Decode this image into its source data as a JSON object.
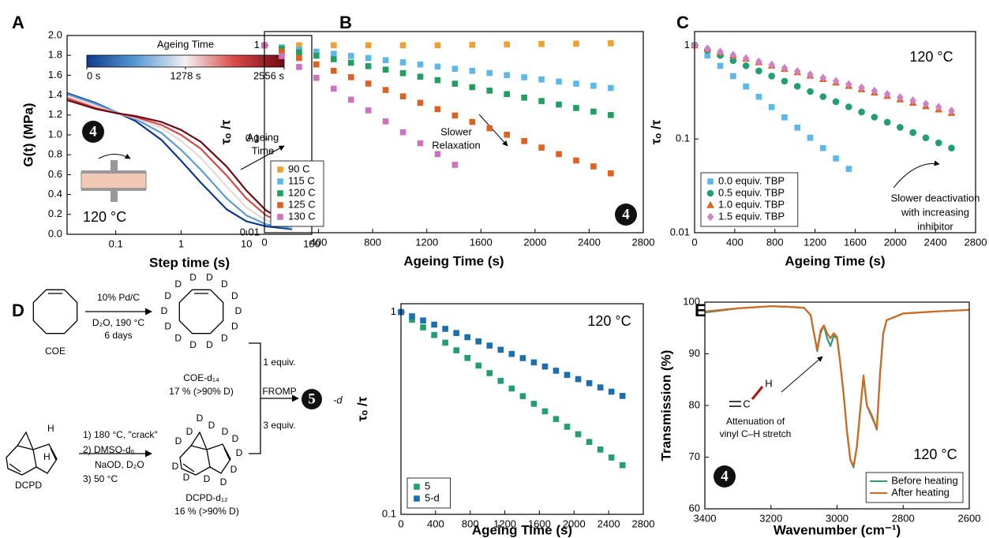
{
  "chart_data": [
    {
      "type": "line",
      "label": "A",
      "xlabel": "Step time (s)",
      "ylabel": "G(t) (MPa)",
      "xlog": true,
      "xlim": [
        0.018,
        100
      ],
      "xticks": [
        0.1,
        1,
        10,
        100
      ],
      "ylim": [
        0,
        2
      ],
      "yticks": [
        {
          "value": 0,
          "label": "0.0"
        },
        0.2,
        0.4,
        0.6,
        0.8,
        {
          "value": 1,
          "label": "1.0"
        },
        1.2,
        1.4,
        1.6,
        1.8,
        {
          "value": 2,
          "label": "2.0"
        }
      ],
      "x": [
        0.018,
        0.05,
        0.1,
        0.2,
        0.5,
        1,
        2,
        5,
        10,
        20,
        50
      ],
      "series": [
        {
          "color": "#0d3a8c",
          "values": [
            1.42,
            1.32,
            1.23,
            1.14,
            0.95,
            0.74,
            0.52,
            0.25,
            0.13,
            0.08,
            0.05
          ]
        },
        {
          "color": "#5a9bd5",
          "values": [
            1.41,
            1.31,
            1.23,
            1.16,
            1.02,
            0.85,
            0.65,
            0.36,
            0.19,
            0.1,
            0.06
          ]
        },
        {
          "color": "#e6d8d8",
          "values": [
            1.39,
            1.29,
            1.22,
            1.17,
            1.07,
            0.94,
            0.77,
            0.48,
            0.27,
            0.14,
            0.07
          ]
        },
        {
          "color": "#d94848",
          "values": [
            1.37,
            1.27,
            1.22,
            1.18,
            1.1,
            1.0,
            0.86,
            0.59,
            0.36,
            0.19,
            0.08
          ]
        },
        {
          "color": "#6e0a12",
          "values": [
            1.35,
            1.26,
            1.22,
            1.19,
            1.13,
            1.05,
            0.93,
            0.68,
            0.44,
            0.24,
            0.09
          ]
        }
      ],
      "colorbar": {
        "title": "Ageing Time",
        "lim": [
          0,
          2556
        ],
        "colors": [
          "#0d3a8c",
          "#5a9bd5",
          "#f2f2f2",
          "#d94848",
          "#6e0a12"
        ],
        "ticks": [
          {
            "value": 0,
            "label": "0 s"
          },
          {
            "value": 1278,
            "label": "1278 s"
          },
          {
            "value": 2556,
            "label": "2556 s"
          }
        ]
      },
      "annotation": [
        "Ageing",
        "Time"
      ],
      "note": "120 °C",
      "badge": "4"
    },
    {
      "type": "scatter",
      "label": "B",
      "xlabel": "Ageing Time (s)",
      "ylabel": "τₒ /τ",
      "xlim": [
        0,
        2800
      ],
      "xticks": [
        0,
        400,
        800,
        1200,
        1600,
        2000,
        2400,
        2800
      ],
      "ylog": true,
      "ylim": [
        0.01,
        1.4
      ],
      "yticks": [
        0.01,
        0.1,
        1
      ],
      "legend": "lower left",
      "series": [
        {
          "name": "90 C",
          "color": "#f0a030",
          "marker": "square",
          "x": [
            0,
            256,
            512,
            768,
            1024,
            1280,
            1536,
            1792,
            2048,
            2304,
            2560
          ],
          "values": [
            1,
            1,
            1,
            1,
            1,
            1,
            1.01,
            1.02,
            1.03,
            1.04,
            1.05
          ]
        },
        {
          "name": "115 C",
          "color": "#5bb8ea",
          "marker": "square",
          "x": [
            0,
            128,
            256,
            384,
            512,
            640,
            768,
            896,
            1024,
            1152,
            1280,
            1408,
            1536,
            1664,
            1792,
            1920,
            2048,
            2176,
            2304,
            2432,
            2560
          ],
          "values": [
            1,
            0.95,
            0.9,
            0.854,
            0.811,
            0.769,
            0.73,
            0.692,
            0.657,
            0.624,
            0.592,
            0.561,
            0.533,
            0.505,
            0.48,
            0.455,
            0.432,
            0.41,
            0.389,
            0.369,
            0.35
          ]
        },
        {
          "name": "120 C",
          "color": "#20a060",
          "marker": "square",
          "x": [
            0,
            128,
            256,
            384,
            512,
            640,
            768,
            896,
            1024,
            1152,
            1280,
            1408,
            1536,
            1664,
            1792,
            1920,
            2048,
            2176,
            2304,
            2432,
            2560
          ],
          "values": [
            1,
            0.918,
            0.843,
            0.773,
            0.71,
            0.651,
            0.598,
            0.549,
            0.504,
            0.462,
            0.424,
            0.389,
            0.357,
            0.328,
            0.301,
            0.276,
            0.254,
            0.233,
            0.214,
            0.196,
            0.18
          ]
        },
        {
          "name": "125 C",
          "color": "#e06020",
          "marker": "square",
          "x": [
            0,
            128,
            256,
            384,
            512,
            640,
            768,
            896,
            1024,
            1152,
            1280,
            1408,
            1536,
            1664,
            1792,
            1920,
            2048,
            2176,
            2304,
            2432,
            2560
          ],
          "values": [
            1,
            0.855,
            0.73,
            0.624,
            0.534,
            0.456,
            0.39,
            0.333,
            0.285,
            0.243,
            0.208,
            0.178,
            0.152,
            0.13,
            0.111,
            0.095,
            0.081,
            0.069,
            0.059,
            0.051,
            0.043
          ]
        },
        {
          "name": "130 C",
          "color": "#d070c0",
          "marker": "square",
          "x": [
            0,
            128,
            256,
            384,
            512,
            640,
            768,
            896,
            1024,
            1152,
            1280,
            1408
          ],
          "values": [
            1,
            0.766,
            0.586,
            0.449,
            0.344,
            0.263,
            0.202,
            0.154,
            0.118,
            0.09,
            0.069,
            0.053
          ]
        }
      ],
      "annotation": [
        "Slower",
        "Relaxation"
      ],
      "badge": "4"
    },
    {
      "type": "scatter",
      "label": "C",
      "xlabel": "Ageing Time (s)",
      "ylabel": "τₒ /τ",
      "xlim": [
        0,
        2800
      ],
      "xticks": [
        0,
        400,
        800,
        1200,
        1600,
        2000,
        2400,
        2800
      ],
      "ylog": true,
      "ylim": [
        0.01,
        1.4
      ],
      "yticks": [
        0.01,
        0.1,
        1
      ],
      "legend": "lower left",
      "series": [
        {
          "name": "0.0 equiv. TBP",
          "color": "#5bb8ea",
          "marker": "square",
          "x": [
            0,
            128,
            256,
            384,
            512,
            640,
            768,
            896,
            1024,
            1152,
            1280,
            1408,
            1536
          ],
          "values": [
            1,
            0.776,
            0.603,
            0.468,
            0.363,
            0.282,
            0.219,
            0.17,
            0.132,
            0.103,
            0.08,
            0.062,
            0.048
          ]
        },
        {
          "name": "0.5 equiv. TBP",
          "color": "#20a070",
          "marker": "circle",
          "x": [
            0,
            128,
            256,
            384,
            512,
            640,
            768,
            896,
            1024,
            1152,
            1280,
            1408,
            1536,
            1664,
            1792,
            1920,
            2048,
            2176,
            2304,
            2432,
            2560
          ],
          "values": [
            1,
            0.881,
            0.777,
            0.685,
            0.604,
            0.532,
            0.469,
            0.414,
            0.365,
            0.321,
            0.283,
            0.25,
            0.22,
            0.194,
            0.171,
            0.151,
            0.133,
            0.117,
            0.103,
            0.091,
            0.08
          ]
        },
        {
          "name": "1.0 equiv. TBP",
          "color": "#e06020",
          "marker": "triangle",
          "x": [
            0,
            128,
            256,
            384,
            512,
            640,
            768,
            896,
            1024,
            1152,
            1280,
            1408,
            1536,
            1664,
            1792,
            1920,
            2048,
            2176,
            2304,
            2432,
            2560
          ],
          "values": [
            1,
            0.92,
            0.847,
            0.78,
            0.718,
            0.66,
            0.608,
            0.559,
            0.515,
            0.474,
            0.436,
            0.401,
            0.369,
            0.34,
            0.313,
            0.288,
            0.265,
            0.244,
            0.224,
            0.207,
            0.19
          ]
        },
        {
          "name": "1.5 equiv. TBP",
          "color": "#d080c8",
          "marker": "diamond",
          "x": [
            0,
            128,
            256,
            384,
            512,
            640,
            768,
            896,
            1024,
            1152,
            1280,
            1408,
            1536,
            1664,
            1792,
            1920,
            2048,
            2176,
            2304,
            2432,
            2560
          ],
          "values": [
            1,
            0.923,
            0.852,
            0.787,
            0.726,
            0.67,
            0.619,
            0.571,
            0.527,
            0.487,
            0.449,
            0.415,
            0.383,
            0.353,
            0.326,
            0.301,
            0.278,
            0.257,
            0.237,
            0.219,
            0.2
          ]
        }
      ],
      "note": "120 °C",
      "annotation": [
        "Slower deactivation",
        "with increasing",
        "inhibitor"
      ]
    },
    {
      "type": "scatter",
      "xlabel": "Ageing Time (s)",
      "ylabel": "τₒ /τ",
      "xlim": [
        0,
        2800
      ],
      "xticks": [
        0,
        400,
        800,
        1200,
        1600,
        2000,
        2400,
        2800
      ],
      "ylog": true,
      "ylim": [
        0.1,
        1.1
      ],
      "yticks": [
        0.1,
        1
      ],
      "legend": "lower left",
      "series": [
        {
          "name": "5",
          "color": "#20a070",
          "marker": "square",
          "x": [
            0,
            128,
            256,
            384,
            512,
            640,
            768,
            896,
            1024,
            1152,
            1280,
            1408,
            1536,
            1664,
            1792,
            1920,
            2048,
            2176,
            2304,
            2432,
            2560
          ],
          "values": [
            1,
            0.917,
            0.84,
            0.77,
            0.706,
            0.647,
            0.593,
            0.544,
            0.499,
            0.457,
            0.419,
            0.384,
            0.352,
            0.323,
            0.296,
            0.271,
            0.249,
            0.228,
            0.209,
            0.191,
            0.175
          ]
        },
        {
          "name": "5-d",
          "color": "#1a6fb0",
          "marker": "square",
          "x": [
            0,
            128,
            256,
            384,
            512,
            640,
            768,
            896,
            1024,
            1152,
            1280,
            1408,
            1536,
            1664,
            1792,
            1920,
            2048,
            2176,
            2304,
            2432,
            2560
          ],
          "values": [
            1,
            0.953,
            0.909,
            0.867,
            0.826,
            0.788,
            0.751,
            0.716,
            0.683,
            0.651,
            0.621,
            0.592,
            0.564,
            0.538,
            0.513,
            0.489,
            0.466,
            0.445,
            0.424,
            0.404,
            0.385
          ]
        }
      ],
      "note": "120 °C"
    },
    {
      "type": "line",
      "label": "E",
      "xlabel": "Wavenumber (cm⁻¹)",
      "ylabel": "Transmission (%)",
      "xlim": [
        3400,
        2600
      ],
      "xticks": [
        3400,
        3200,
        3000,
        2800,
        2600
      ],
      "ylim": [
        60,
        100
      ],
      "yticks": [
        60,
        70,
        80,
        90,
        100
      ],
      "legend": "lower right",
      "x": [
        3400,
        3300,
        3200,
        3150,
        3100,
        3080,
        3070,
        3060,
        3050,
        3040,
        3030,
        3020,
        3010,
        3000,
        2990,
        2980,
        2970,
        2960,
        2950,
        2940,
        2930,
        2920,
        2910,
        2900,
        2890,
        2880,
        2870,
        2860,
        2850,
        2800,
        2700,
        2600
      ],
      "series": [
        {
          "name": "Before heating",
          "color": "#2a9d7f",
          "values": [
            98.0,
            98.8,
            99.2,
            99.1,
            98.9,
            97.5,
            94,
            90.5,
            94,
            95.5,
            93,
            91.5,
            93.5,
            93,
            88,
            82,
            75,
            69.5,
            68,
            72,
            79,
            85.5,
            80,
            78.5,
            77,
            75.5,
            86,
            94,
            96.5,
            97.8,
            98.2,
            98.5
          ]
        },
        {
          "name": "After heating",
          "color": "#d2691e",
          "values": [
            98.2,
            98.8,
            99.2,
            99.1,
            98.9,
            97.5,
            94,
            90.8,
            94.5,
            95.5,
            94,
            93,
            94,
            93.2,
            88,
            82,
            75,
            69.5,
            68.3,
            72,
            79,
            85.8,
            80,
            78.8,
            77.3,
            75.3,
            86,
            94,
            96.5,
            97.8,
            98.2,
            98.5
          ]
        }
      ],
      "note": "120 °C",
      "badge": "4",
      "annotation": [
        "Attenuation of",
        "vinyl C–H stretch"
      ],
      "structure": [
        "C",
        "H"
      ]
    }
  ],
  "scheme": {
    "label": "D",
    "coe": "COE",
    "step1": [
      "10% Pd/C",
      "D₂O, 190 °C",
      "6 days"
    ],
    "coe_d14": "COE-d₁₄",
    "coe_yield": "17 % (>90% D)",
    "coe_d": [
      "D",
      "D",
      "D",
      "D",
      "D",
      "D",
      "D",
      "D",
      "D",
      "D",
      "D",
      "D",
      "D",
      "D"
    ],
    "dcpd": "DCPD",
    "dcpd_h": [
      "H",
      "H"
    ],
    "step2": [
      "1) 180 °C, \"crack\"",
      "2) DMSO-d₆",
      "NaOD, D₂O",
      "3) 50 °C"
    ],
    "dcpd_d12": "DCPD-d₁₂",
    "dcpd_yield": "16 % (>90% D)",
    "dcpd_d": [
      "D",
      "D",
      "D",
      "D",
      "D",
      "D",
      "D",
      "D",
      "D",
      "D",
      "D",
      "D"
    ],
    "equiv1": "1 equiv.",
    "fromp": "FROMP",
    "equiv3": "3 equiv.",
    "product_badge": "5",
    "product_suffix": "-d"
  }
}
